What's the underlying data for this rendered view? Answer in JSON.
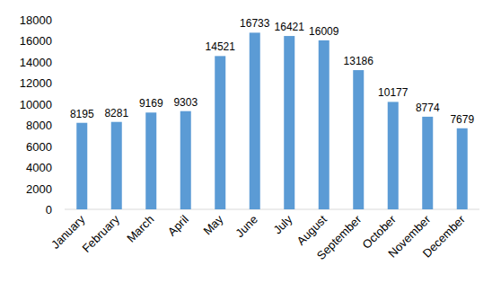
{
  "chart_data": {
    "type": "bar",
    "categories": [
      "January",
      "February",
      "March",
      "April",
      "May",
      "June",
      "July",
      "August",
      "September",
      "October",
      "November",
      "December"
    ],
    "values": [
      8195,
      8281,
      9169,
      9303,
      14521,
      16733,
      16421,
      16009,
      13186,
      10177,
      8774,
      7679
    ],
    "color": "#5b9bd5",
    "ylim": [
      0,
      18000
    ],
    "yticks": [
      0,
      2000,
      4000,
      6000,
      8000,
      10000,
      12000,
      14000,
      16000,
      18000
    ],
    "grid": false,
    "data_labels": true
  }
}
